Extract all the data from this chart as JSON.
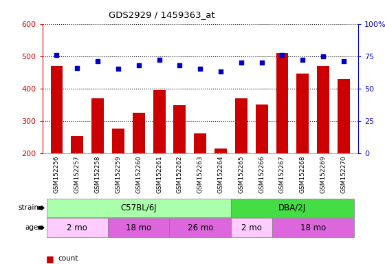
{
  "title": "GDS2929 / 1459363_at",
  "samples": [
    "GSM152256",
    "GSM152257",
    "GSM152258",
    "GSM152259",
    "GSM152260",
    "GSM152261",
    "GSM152262",
    "GSM152263",
    "GSM152264",
    "GSM152265",
    "GSM152266",
    "GSM152267",
    "GSM152268",
    "GSM152269",
    "GSM152270"
  ],
  "counts": [
    470,
    252,
    370,
    275,
    325,
    395,
    348,
    260,
    215,
    370,
    350,
    510,
    445,
    470,
    430
  ],
  "percentile_pct": [
    76,
    66,
    71,
    65,
    68,
    72,
    68,
    65,
    63,
    70,
    70,
    76,
    72,
    75,
    71
  ],
  "ylim_left": [
    200,
    600
  ],
  "ylim_right": [
    0,
    100
  ],
  "yticks_left": [
    200,
    300,
    400,
    500,
    600
  ],
  "yticks_right": [
    0,
    25,
    50,
    75,
    100
  ],
  "bar_color": "#cc0000",
  "dot_color": "#0000cc",
  "strain_groups": [
    {
      "label": "C57BL/6J",
      "start": 0,
      "end": 9,
      "color": "#aaffaa"
    },
    {
      "label": "DBA/2J",
      "start": 9,
      "end": 15,
      "color": "#44dd44"
    }
  ],
  "age_groups": [
    {
      "label": "2 mo",
      "start": 0,
      "end": 3,
      "color": "#ffccff"
    },
    {
      "label": "18 mo",
      "start": 3,
      "end": 6,
      "color": "#dd66dd"
    },
    {
      "label": "26 mo",
      "start": 6,
      "end": 9,
      "color": "#dd66dd"
    },
    {
      "label": "2 mo",
      "start": 9,
      "end": 11,
      "color": "#ffccff"
    },
    {
      "label": "18 mo",
      "start": 11,
      "end": 15,
      "color": "#dd66dd"
    }
  ],
  "plot_bg_color": "#ffffff",
  "tick_label_area_color": "#d8d8d8",
  "left_tick_color": "#cc0000",
  "right_tick_color": "#0000cc"
}
